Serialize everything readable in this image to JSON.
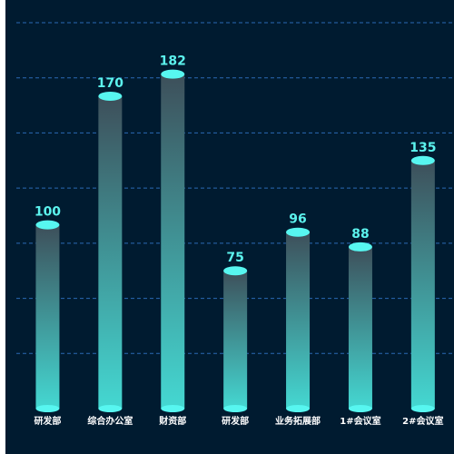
{
  "chart_data": {
    "type": "bar",
    "title": "",
    "xlabel": "",
    "ylabel": "",
    "categories": [
      "研发部",
      "综合办公室",
      "财资部",
      "研发部",
      "业务拓展部",
      "1#会议室",
      "2#会议室"
    ],
    "values": [
      100,
      170,
      182,
      75,
      96,
      88,
      135
    ],
    "ylim": [
      0,
      210
    ],
    "grid": true,
    "colors": {
      "background": "#001b30",
      "bar_top": "#3d4f5a",
      "bar_bottom": "#44d8d2",
      "cap": "#57f6f0",
      "value_label": "#5cf3ee",
      "category_label": "#ffffff",
      "grid": "#2a6ab4"
    }
  }
}
